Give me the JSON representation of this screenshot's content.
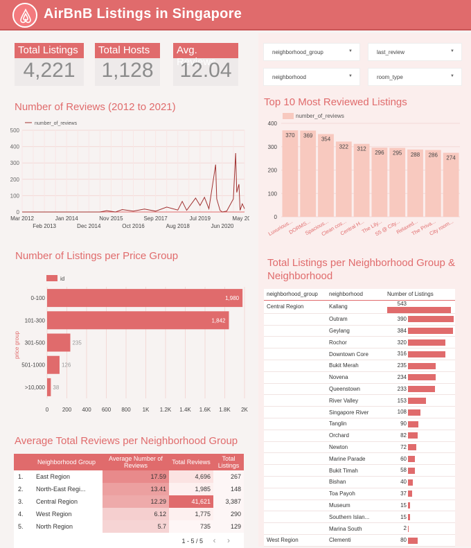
{
  "header": {
    "title": "AirBnB Listings in Singapore"
  },
  "colors": {
    "accent": "#e06b6c",
    "light": "#f8c9bf",
    "panel": "#fbeeed"
  },
  "kpis": [
    {
      "label": "Total Listings",
      "value": "4,221"
    },
    {
      "label": "Total Hosts",
      "value": "1,128"
    },
    {
      "label": "Avg. Reviews",
      "value": "12.04"
    }
  ],
  "filters": [
    {
      "label": "neighborhood_group"
    },
    {
      "label": "last_review"
    },
    {
      "label": "neighborhood"
    },
    {
      "label": "room_type"
    }
  ],
  "sections": {
    "reviews_title": "Number of Reviews (2012 to 2021)",
    "price_title": "Number of Listings per Price Group",
    "avg_title": "Average Total Reviews per Neighborhood Group",
    "top10_title": "Top 10 Most Reviewed Listings",
    "nbr_title_line1": "Total Listings per Neighborhood Group &",
    "nbr_title_line2": "Neighborhood"
  },
  "chart_data": [
    {
      "type": "line",
      "title": "Number of Reviews (2012 to 2021)",
      "legend": "number_of_reviews",
      "ylim": [
        0,
        500
      ],
      "yticks": [
        0,
        100,
        200,
        300,
        400,
        500
      ],
      "xticks_top": [
        "Mar 2012",
        "Jan 2014",
        "Nov 2015",
        "Sep 2017",
        "Jul 2019",
        "May 2021"
      ],
      "xticks_bottom": [
        "Feb 2013",
        "Dec 2014",
        "Oct 2016",
        "Aug 2018",
        "Jun 2020"
      ],
      "x": [
        0,
        0.35,
        0.38,
        0.42,
        0.45,
        0.5,
        0.55,
        0.6,
        0.65,
        0.7,
        0.72,
        0.74,
        0.78,
        0.8,
        0.82,
        0.84,
        0.86,
        0.87,
        0.875,
        0.89,
        0.9,
        0.92,
        0.95,
        0.96,
        0.965,
        0.975,
        0.98,
        0.99,
        1.0
      ],
      "values": [
        0,
        0,
        8,
        0,
        15,
        5,
        18,
        5,
        30,
        12,
        65,
        10,
        85,
        40,
        90,
        20,
        200,
        290,
        80,
        10,
        0,
        5,
        80,
        360,
        120,
        170,
        10,
        50,
        20
      ]
    },
    {
      "type": "bar",
      "title": "Top 10 Most Reviewed Listings",
      "legend": "number_of_reviews",
      "ylim": [
        0,
        400
      ],
      "yticks": [
        0,
        100,
        200,
        300,
        400
      ],
      "categories": [
        "Luxurious...",
        "DORMS...",
        "Spacious...",
        "Clean cos...",
        "Central H...",
        "The Lily...",
        "S5 @ City...",
        "Relaxed...",
        "The Priva...",
        "City room..."
      ],
      "values": [
        370,
        369,
        354,
        322,
        312,
        296,
        295,
        288,
        286,
        274
      ]
    },
    {
      "type": "bar",
      "orientation": "horizontal",
      "title": "Number of Listings per Price Group",
      "legend": "id",
      "ylabel": "price group",
      "xlim": [
        0,
        2000
      ],
      "xticks": [
        "0",
        "200",
        "400",
        "600",
        "800",
        "1K",
        "1.2K",
        "1.4K",
        "1.6K",
        "1.8K",
        "2K"
      ],
      "categories": [
        "0-100",
        "101-300",
        "301-500",
        "501-1000",
        ">10,000"
      ],
      "values": [
        1980,
        1842,
        235,
        126,
        38
      ],
      "labels": [
        "1,980",
        "1,842",
        "235",
        "126",
        "38"
      ]
    }
  ],
  "avg_table": {
    "headers": [
      "",
      "Neighborhood Group",
      "Average Number of Reviews",
      "Total Reviews",
      "Total Listings"
    ],
    "rows": [
      {
        "idx": "1.",
        "group": "East Region",
        "avg": "17.59",
        "total": "4,696",
        "listings": "267",
        "avg_shade": "#e88a8b",
        "tot_shade": "#fbe3e2"
      },
      {
        "idx": "2.",
        "group": "North-East Regi...",
        "avg": "13.41",
        "total": "1,985",
        "listings": "148",
        "avg_shade": "#eca0a0",
        "tot_shade": "#fdf0ef"
      },
      {
        "idx": "3.",
        "group": "Central Region",
        "avg": "12.29",
        "total": "41,621",
        "listings": "3,387",
        "avg_shade": "#eeaaaa",
        "tot_shade": "#e06b6c"
      },
      {
        "idx": "4.",
        "group": "West Region",
        "avg": "6.12",
        "total": "1,775",
        "listings": "290",
        "avg_shade": "#f5cfcf",
        "tot_shade": "#fdf0ef"
      },
      {
        "idx": "5.",
        "group": "North Region",
        "avg": "5.7",
        "total": "735",
        "listings": "129",
        "avg_shade": "#f6d4d4",
        "tot_shade": "#fef6f6"
      }
    ],
    "pagination": "1 - 5 / 5"
  },
  "nbr_table": {
    "headers": [
      "neighborhood_group",
      "neighborhood",
      "Number of Listings"
    ],
    "rows": [
      {
        "group": "Central Region",
        "name": "Kallang",
        "count": "543",
        "frac": 1.0
      },
      {
        "group": "",
        "name": "Outram",
        "count": "390",
        "frac": 0.718
      },
      {
        "group": "",
        "name": "Geylang",
        "count": "384",
        "frac": 0.707
      },
      {
        "group": "",
        "name": "Rochor",
        "count": "320",
        "frac": 0.589
      },
      {
        "group": "",
        "name": "Downtown Core",
        "count": "316",
        "frac": 0.582
      },
      {
        "group": "",
        "name": "Bukit Merah",
        "count": "235",
        "frac": 0.433
      },
      {
        "group": "",
        "name": "Novena",
        "count": "234",
        "frac": 0.431
      },
      {
        "group": "",
        "name": "Queenstown",
        "count": "233",
        "frac": 0.429
      },
      {
        "group": "",
        "name": "River Valley",
        "count": "153",
        "frac": 0.282
      },
      {
        "group": "",
        "name": "Singapore River",
        "count": "108",
        "frac": 0.199
      },
      {
        "group": "",
        "name": "Tanglin",
        "count": "90",
        "frac": 0.166
      },
      {
        "group": "",
        "name": "Orchard",
        "count": "82",
        "frac": 0.151
      },
      {
        "group": "",
        "name": "Newton",
        "count": "72",
        "frac": 0.133
      },
      {
        "group": "",
        "name": "Marine Parade",
        "count": "60",
        "frac": 0.11
      },
      {
        "group": "",
        "name": "Bukit Timah",
        "count": "58",
        "frac": 0.107
      },
      {
        "group": "",
        "name": "Bishan",
        "count": "40",
        "frac": 0.074
      },
      {
        "group": "",
        "name": "Toa Payoh",
        "count": "37",
        "frac": 0.068
      },
      {
        "group": "",
        "name": "Museum",
        "count": "15",
        "frac": 0.028
      },
      {
        "group": "",
        "name": "Southern Islan...",
        "count": "15",
        "frac": 0.028
      },
      {
        "group": "",
        "name": "Marina South",
        "count": "2",
        "frac": 0.004
      },
      {
        "group": "West Region",
        "name": "Clementi",
        "count": "80",
        "frac": 0.147
      }
    ]
  }
}
